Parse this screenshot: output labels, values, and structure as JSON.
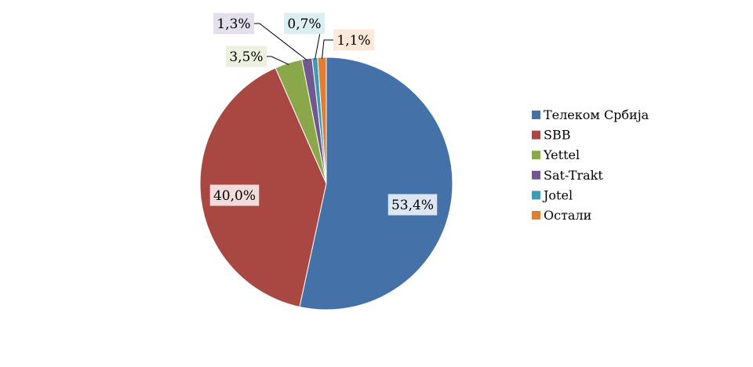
{
  "chart_data": {
    "type": "pie",
    "title": "",
    "slices": [
      {
        "label": "Телеком Србија",
        "value": 53.4,
        "display": "53,4%",
        "color": "#4472a8",
        "label_bg": "#dce6f2"
      },
      {
        "label": "SBB",
        "value": 40.0,
        "display": "40,0%",
        "color": "#a94842",
        "label_bg": "#f2dcdb"
      },
      {
        "label": "Yettel",
        "value": 3.5,
        "display": "3,5%",
        "color": "#8aa84a",
        "label_bg": "#ebf1de"
      },
      {
        "label": "Sat-Trakt",
        "value": 1.3,
        "display": "1,3%",
        "color": "#71598f",
        "label_bg": "#e4dfec"
      },
      {
        "label": "Jotel",
        "value": 0.7,
        "display": "0,7%",
        "color": "#3f9bb4",
        "label_bg": "#daeef3"
      },
      {
        "label": "Остали",
        "value": 1.1,
        "display": "1,1%",
        "color": "#e07f33",
        "label_bg": "#fde9d9"
      }
    ],
    "legend": "right"
  }
}
